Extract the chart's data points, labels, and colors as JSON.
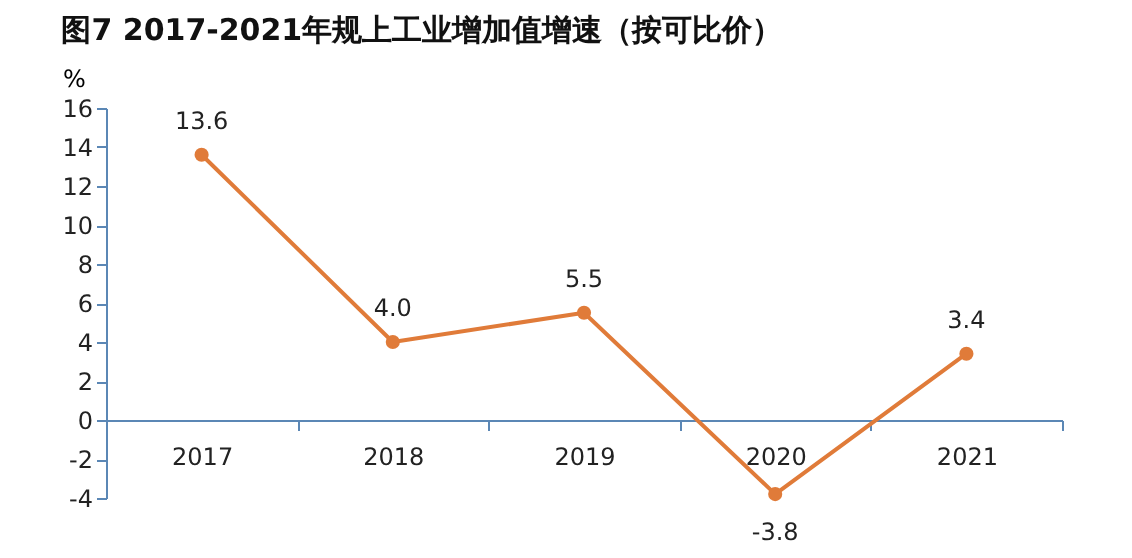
{
  "chart_data": {
    "type": "line",
    "title": "图7          2017-2021年规上工业增加值增速（按可比价）",
    "ylabel": "%",
    "categories": [
      "2017",
      "2018",
      "2019",
      "2020",
      "2021"
    ],
    "series": [
      {
        "color": "#e07b39",
        "values": [
          13.6,
          4.0,
          5.5,
          -3.8,
          3.4
        ]
      }
    ],
    "ylim": [
      -4,
      16
    ],
    "yticks": [
      -4,
      -2,
      0,
      2,
      4,
      6,
      8,
      10,
      12,
      14,
      16
    ],
    "value_labels": [
      "13.6",
      "4.0",
      "5.5",
      "-3.8",
      "3.4"
    ],
    "marker": "circle",
    "grid": false,
    "legend": false
  }
}
